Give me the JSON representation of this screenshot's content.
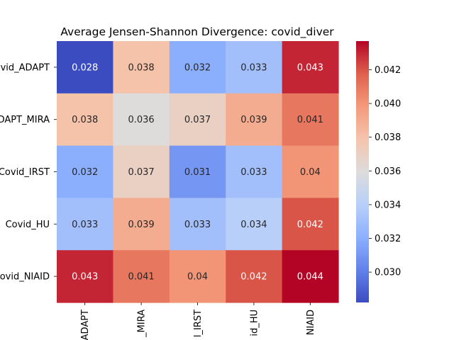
{
  "chart_data": {
    "type": "heatmap",
    "title": "Average Jensen-Shannon Divergence: covid_diver",
    "row_labels": [
      "vid_ADAPT",
      "DAPT_MIRA",
      "Covid_IRST",
      "Covid_HU",
      "ovid_NIAID"
    ],
    "col_labels": [
      "ADAPT",
      "_MIRA",
      "l_IRST",
      "id_HU",
      "NIAID"
    ],
    "values": [
      [
        0.028,
        0.038,
        0.032,
        0.033,
        0.043
      ],
      [
        0.038,
        0.036,
        0.037,
        0.039,
        0.041
      ],
      [
        0.032,
        0.037,
        0.031,
        0.033,
        0.04
      ],
      [
        0.033,
        0.039,
        0.033,
        0.034,
        0.042
      ],
      [
        0.043,
        0.041,
        0.04,
        0.042,
        0.044
      ]
    ],
    "annotations": [
      [
        "0.028",
        "0.038",
        "0.032",
        "0.033",
        "0.043"
      ],
      [
        "0.038",
        "0.036",
        "0.037",
        "0.039",
        "0.041"
      ],
      [
        "0.032",
        "0.037",
        "0.031",
        "0.033",
        "0.04"
      ],
      [
        "0.033",
        "0.039",
        "0.033",
        "0.034",
        "0.042"
      ],
      [
        "0.043",
        "0.041",
        "0.04",
        "0.042",
        "0.044"
      ]
    ],
    "colormap": "coolwarm",
    "color_range": [
      0.0282,
      0.0437
    ],
    "colorbar_ticks": [
      "0.030",
      "0.032",
      "0.034",
      "0.036",
      "0.038",
      "0.040",
      "0.042"
    ],
    "colorbar_tick_values": [
      0.03,
      0.032,
      0.034,
      0.036,
      0.038,
      0.04,
      0.042
    ]
  }
}
